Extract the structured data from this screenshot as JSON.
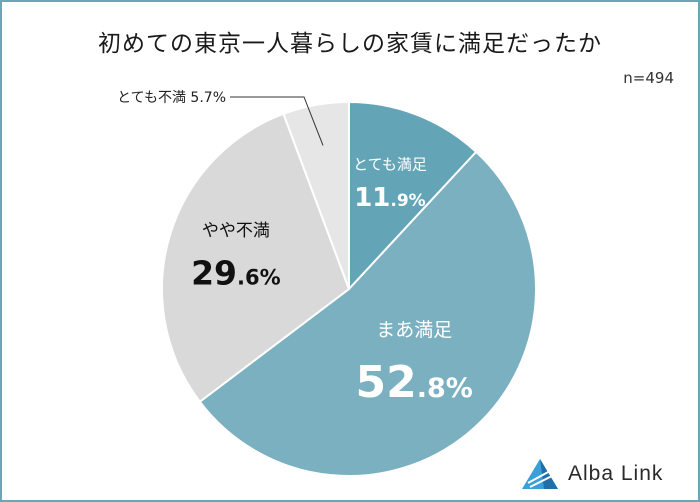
{
  "title": "初めての東京一人暮らしの家賃に満足だったか",
  "sample_size": "n=494",
  "logo": {
    "text": "Alba Link"
  },
  "colors": {
    "very_satisfied": "#63a5b7",
    "somewhat_satisfied": "#7ab0c0",
    "somewhat_dissatisfied": "#d9d9d9",
    "very_dissatisfied": "#e6e6e6",
    "logo_accent": "#3aa0d8"
  },
  "chart_data": {
    "type": "pie",
    "title": "初めての東京一人暮らしの家賃に満足だったか",
    "slices": [
      {
        "label": "とても満足",
        "value": 11.9,
        "int": "11",
        "dec": ".9%"
      },
      {
        "label": "まあ満足",
        "value": 52.8,
        "int": "52",
        "dec": ".8%"
      },
      {
        "label": "やや不満",
        "value": 29.6,
        "int": "29",
        "dec": ".6%"
      },
      {
        "label": "とても不満",
        "value": 5.7,
        "text": "とても不満 5.7%"
      }
    ]
  }
}
